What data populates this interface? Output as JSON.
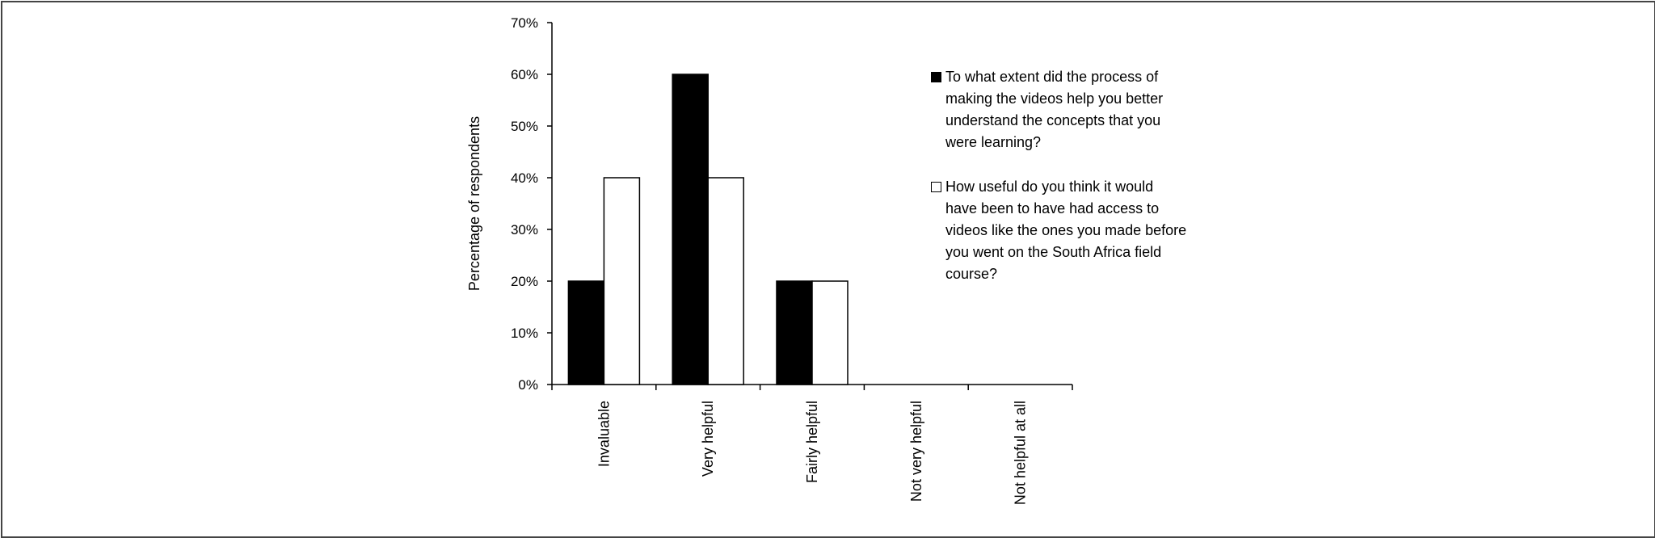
{
  "chart_data": {
    "type": "bar",
    "title": "",
    "xlabel": "",
    "ylabel": "Percentage of respondents",
    "ylim": [
      0,
      70
    ],
    "y_ticks": [
      "0%",
      "10%",
      "20%",
      "30%",
      "40%",
      "50%",
      "60%",
      "70%"
    ],
    "categories": [
      "Invaluable",
      "Very helpful",
      "Fairly helpful",
      "Not very helpful",
      "Not helpful at all"
    ],
    "series": [
      {
        "name": "To what extent did the process of making the videos help you better understand the concepts that you were learning?",
        "color": "#000000",
        "values": [
          20,
          60,
          20,
          0,
          0
        ]
      },
      {
        "name": "How useful do you think it would have been to have had access to videos like the ones you made before you went on the South Africa field course?",
        "color": "#ffffff",
        "values": [
          40,
          40,
          20,
          0,
          0
        ]
      }
    ],
    "grid": false,
    "legend_position": "right"
  }
}
